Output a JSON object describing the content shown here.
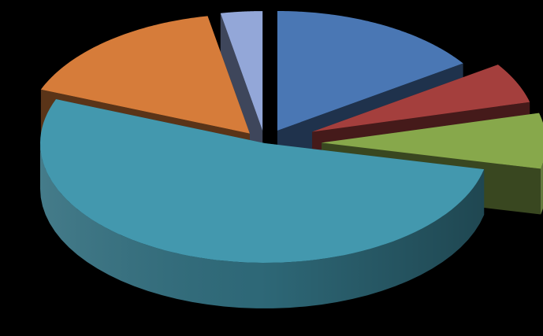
{
  "chart_data": {
    "type": "pie",
    "title": "",
    "style": "3d-exploded",
    "legend": "none",
    "data_labels": "none",
    "slices": [
      {
        "value": 15.5,
        "color": "#4a77b4"
      },
      {
        "value": 5.5,
        "color": "#a43f3d"
      },
      {
        "value": 7.5,
        "color": "#87a84b"
      },
      {
        "value": 52.5,
        "color": "#4398ae"
      },
      {
        "value": 16.0,
        "color": "#d67c3a"
      },
      {
        "value": 3.0,
        "color": "#93a7d8"
      }
    ]
  }
}
